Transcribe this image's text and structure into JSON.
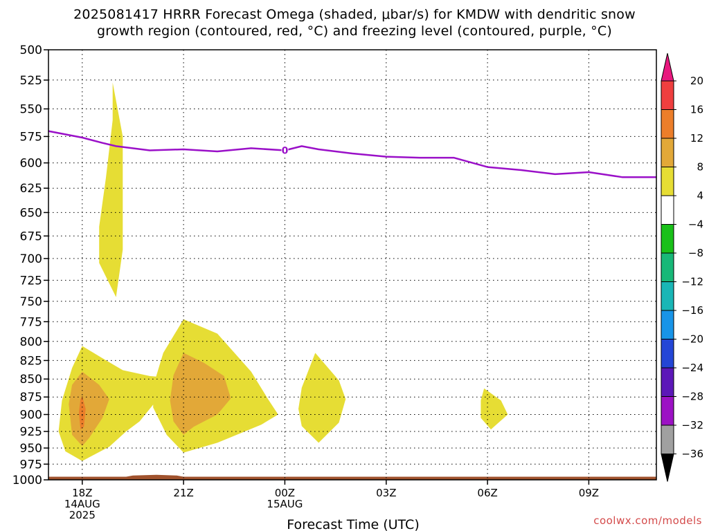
{
  "chart_data": {
    "type": "area",
    "title_lines": [
      "2025081417 HRRR Forecast Omega (shaded, μbar/s) for KMDW with dendritic snow",
      "growth region (contoured, red, °C) and freezing level (contoured, purple, °C)"
    ],
    "xlabel": "Forecast Time (UTC)",
    "ylabel": "",
    "x_ticks": [
      {
        "hour": 1,
        "lines": [
          "18Z",
          "14AUG",
          "2025"
        ]
      },
      {
        "hour": 4,
        "lines": [
          "21Z"
        ]
      },
      {
        "hour": 7,
        "lines": [
          "00Z",
          "15AUG"
        ]
      },
      {
        "hour": 10,
        "lines": [
          "03Z"
        ]
      },
      {
        "hour": 13,
        "lines": [
          "06Z"
        ]
      },
      {
        "hour": 16,
        "lines": [
          "09Z"
        ]
      }
    ],
    "x_range": [
      0,
      18
    ],
    "y_ticks": [
      500,
      525,
      550,
      575,
      600,
      625,
      650,
      675,
      700,
      725,
      750,
      775,
      800,
      825,
      850,
      875,
      900,
      925,
      950,
      975,
      1000
    ],
    "y_range": [
      500,
      1000
    ],
    "y_scale": "log-pressure",
    "grid": true,
    "freezing_level": {
      "label": "0",
      "label_point": [
        7,
        588
      ],
      "points": [
        [
          0,
          570
        ],
        [
          1,
          576
        ],
        [
          1.6,
          581
        ],
        [
          2,
          584
        ],
        [
          3,
          588
        ],
        [
          4,
          587
        ],
        [
          5,
          589
        ],
        [
          6,
          586
        ],
        [
          7,
          588
        ],
        [
          7.5,
          584
        ],
        [
          8,
          587
        ],
        [
          9,
          591
        ],
        [
          10,
          594
        ],
        [
          11,
          595
        ],
        [
          12,
          595
        ],
        [
          13,
          604
        ],
        [
          14,
          607
        ],
        [
          15,
          611
        ],
        [
          16,
          609
        ],
        [
          17,
          614
        ],
        [
          18,
          614
        ]
      ]
    },
    "omega_regions": [
      {
        "level": "4-8",
        "points": [
          [
            1.9,
            527
          ],
          [
            2.2,
            575
          ],
          [
            2.2,
            690
          ],
          [
            2.0,
            745
          ],
          [
            1.5,
            705
          ],
          [
            1.5,
            665
          ],
          [
            1.7,
            615
          ],
          [
            1.9,
            560
          ]
        ]
      },
      {
        "level": "4-8",
        "points": [
          [
            1,
            806
          ],
          [
            1.6,
            822
          ],
          [
            2.2,
            838
          ],
          [
            3,
            846
          ],
          [
            3.5,
            848
          ],
          [
            3.2,
            880
          ],
          [
            2.7,
            910
          ],
          [
            2.3,
            925
          ],
          [
            1.8,
            948
          ],
          [
            1.0,
            970
          ],
          [
            0.5,
            955
          ],
          [
            0.3,
            925
          ],
          [
            0.4,
            880
          ],
          [
            0.7,
            835
          ]
        ]
      },
      {
        "level": "8-12",
        "points": [
          [
            1,
            840
          ],
          [
            1.5,
            858
          ],
          [
            1.8,
            878
          ],
          [
            1.6,
            905
          ],
          [
            1.2,
            935
          ],
          [
            1.0,
            947
          ],
          [
            0.7,
            930
          ],
          [
            0.6,
            885
          ],
          [
            0.7,
            858
          ]
        ]
      },
      {
        "level": "12-16",
        "points": [
          [
            1,
            874
          ],
          [
            1.1,
            892
          ],
          [
            1.05,
            918
          ],
          [
            0.95,
            922
          ],
          [
            0.9,
            897
          ],
          [
            0.95,
            878
          ]
        ]
      },
      {
        "level": "4-8",
        "points": [
          [
            4,
            772
          ],
          [
            5,
            790
          ],
          [
            6,
            840
          ],
          [
            6.5,
            878
          ],
          [
            6.8,
            900
          ],
          [
            6.3,
            915
          ],
          [
            5,
            942
          ],
          [
            4,
            957
          ],
          [
            3.5,
            930
          ],
          [
            3.1,
            890
          ],
          [
            3.1,
            860
          ],
          [
            3.4,
            815
          ]
        ]
      },
      {
        "level": "8-12",
        "points": [
          [
            4,
            815
          ],
          [
            4.6,
            828
          ],
          [
            5.2,
            846
          ],
          [
            5.4,
            877
          ],
          [
            5,
            900
          ],
          [
            4.3,
            918
          ],
          [
            4.0,
            930
          ],
          [
            3.7,
            910
          ],
          [
            3.6,
            880
          ],
          [
            3.7,
            845
          ]
        ]
      },
      {
        "level": "4-8",
        "points": [
          [
            7.9,
            815
          ],
          [
            8.6,
            852
          ],
          [
            8.8,
            878
          ],
          [
            8.6,
            912
          ],
          [
            8.0,
            942
          ],
          [
            7.5,
            917
          ],
          [
            7.4,
            892
          ],
          [
            7.5,
            862
          ]
        ]
      },
      {
        "level": "4-8",
        "points": [
          [
            12.9,
            863
          ],
          [
            13.4,
            880
          ],
          [
            13.6,
            900
          ],
          [
            13.1,
            922
          ],
          [
            12.8,
            905
          ],
          [
            12.8,
            880
          ]
        ]
      }
    ],
    "terrain": {
      "points": [
        [
          0,
          995
        ],
        [
          2.3,
          995
        ],
        [
          2.5,
          993
        ],
        [
          3.2,
          992
        ],
        [
          3.8,
          993
        ],
        [
          4.0,
          995
        ],
        [
          18,
          995
        ],
        [
          18,
          1000
        ],
        [
          0,
          1000
        ]
      ]
    },
    "colorbar": {
      "labels": [
        "20",
        "16",
        "12",
        "8",
        "4",
        "−4",
        "−8",
        "−12",
        "−16",
        "−20",
        "−24",
        "−28",
        "−32",
        "−36"
      ],
      "colors": [
        "#e8187e",
        "#ef3f3f",
        "#ec7e2a",
        "#e2a838",
        "#e6dd34",
        "#ffffff",
        "#19c019",
        "#18b878",
        "#19b6b6",
        "#1894e8",
        "#2446d6",
        "#5c18b8",
        "#9c12c4",
        "#a0a0a0",
        "#000000"
      ]
    }
  },
  "footer": {
    "credit": "coolwx.com/models"
  }
}
